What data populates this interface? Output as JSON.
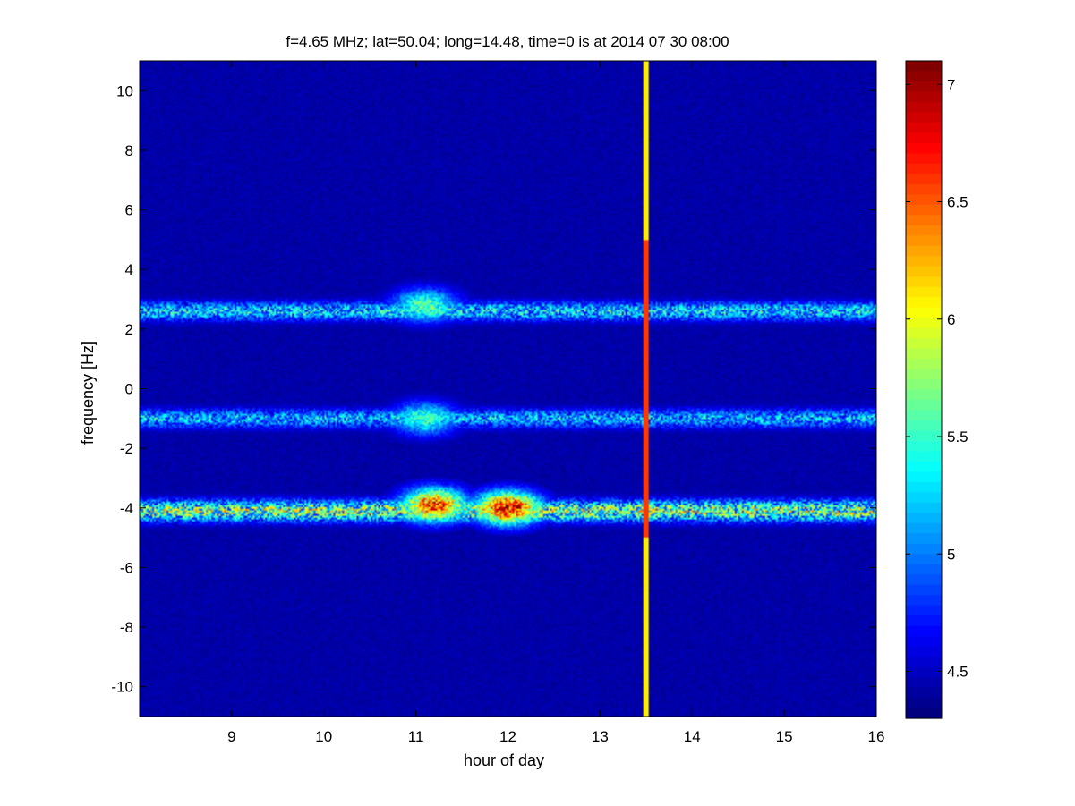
{
  "chart_data": {
    "type": "heatmap",
    "title": "f=4.65 MHz;  lat=50.04; long=14.48, time=0 is at 2014 07 30 08:00",
    "xlabel": "hour of day",
    "ylabel": "frequency [Hz]",
    "xlim": [
      8.0,
      16.0
    ],
    "ylim": [
      -11.0,
      11.0
    ],
    "x_ticks": [
      9,
      10,
      11,
      12,
      13,
      14,
      15,
      16
    ],
    "y_ticks": [
      -10,
      -8,
      -6,
      -4,
      -2,
      0,
      2,
      4,
      6,
      8,
      10
    ],
    "colormap": "jet",
    "clim": [
      4.3,
      7.1
    ],
    "colorbar_ticks": [
      4.5,
      5,
      5.5,
      6,
      6.5,
      7
    ],
    "background_level": 4.35,
    "bands": [
      {
        "center_hz": 2.6,
        "spread_hz": 0.45,
        "mean_level": 5.2
      },
      {
        "center_hz": -1.0,
        "spread_hz": 0.45,
        "mean_level": 5.1
      },
      {
        "center_hz": -4.1,
        "spread_hz": 0.5,
        "mean_level": 5.6
      }
    ],
    "blobs": [
      {
        "hour": 11.1,
        "freq_hz": 2.8,
        "level": 5.6
      },
      {
        "hour": 11.1,
        "freq_hz": -1.0,
        "level": 5.5
      },
      {
        "hour": 11.2,
        "freq_hz": -3.9,
        "level": 6.6
      },
      {
        "hour": 12.0,
        "freq_hz": -4.0,
        "level": 6.8
      }
    ],
    "data_gap": {
      "hour": 13.5,
      "level": 6.1
    }
  }
}
